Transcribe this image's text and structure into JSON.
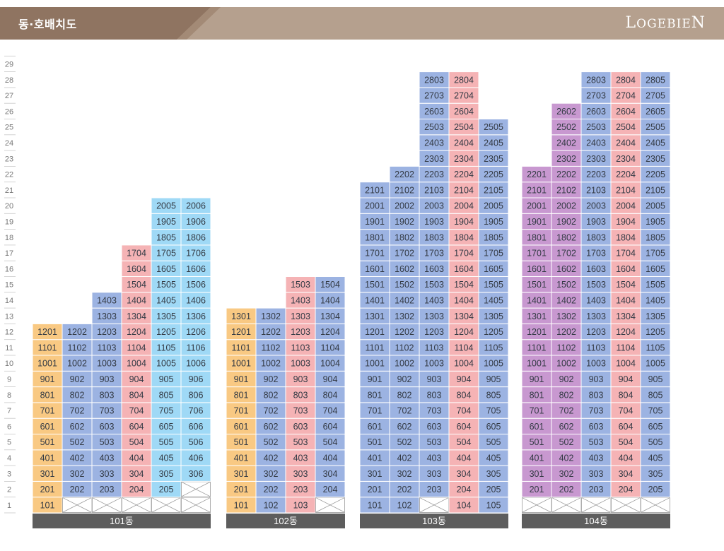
{
  "header": {
    "title": "동·호배치도",
    "brand": "LogebieN"
  },
  "colors": {
    "header_bg": "#b5a08e",
    "header_dark": "#8f7461",
    "yellow": "#f9c983",
    "blue": "#9cb3e2",
    "pink": "#f5b3b5",
    "lightblue": "#9fd9f6",
    "purple": "#c898d0",
    "empty": "#ffffff",
    "label_bg": "#5d5d5d"
  },
  "floors": [
    "1",
    "2",
    "3",
    "4",
    "5",
    "6",
    "7",
    "8",
    "9",
    "10",
    "11",
    "12",
    "13",
    "14",
    "15",
    "16",
    "17",
    "18",
    "19",
    "20",
    "21",
    "22",
    "23",
    "24",
    "25",
    "26",
    "27",
    "28",
    "29"
  ],
  "buildings": [
    {
      "label": "101동",
      "lines": [
        {
          "no": 1,
          "color": "yellow",
          "floors": [
            1,
            12
          ],
          "missing": []
        },
        {
          "no": 2,
          "color": "blue",
          "floors": [
            1,
            12
          ],
          "missing": [
            1
          ]
        },
        {
          "no": 3,
          "color": "blue",
          "floors": [
            1,
            14
          ],
          "missing": [
            1
          ]
        },
        {
          "no": 4,
          "color": "pink",
          "floors": [
            1,
            17
          ],
          "missing": [
            1
          ]
        },
        {
          "no": 5,
          "color": "lightblue",
          "floors": [
            1,
            20
          ],
          "missing": [
            1
          ]
        },
        {
          "no": 6,
          "color": "lightblue",
          "floors": [
            1,
            20
          ],
          "missing": [
            1,
            2
          ]
        }
      ]
    },
    {
      "label": "102동",
      "lines": [
        {
          "no": 1,
          "color": "yellow",
          "floors": [
            1,
            13
          ],
          "missing": []
        },
        {
          "no": 2,
          "color": "blue",
          "floors": [
            1,
            13
          ],
          "missing": []
        },
        {
          "no": 3,
          "color": "pink",
          "floors": [
            1,
            15
          ],
          "missing": []
        },
        {
          "no": 4,
          "color": "blue",
          "floors": [
            1,
            15
          ],
          "missing": [
            1
          ]
        }
      ]
    },
    {
      "label": "103동",
      "lines": [
        {
          "no": 1,
          "color": "blue",
          "floors": [
            1,
            21
          ],
          "missing": []
        },
        {
          "no": 2,
          "color": "blue",
          "floors": [
            1,
            22
          ],
          "missing": []
        },
        {
          "no": 3,
          "color": "blue",
          "floors": [
            1,
            28
          ],
          "missing": [
            1
          ]
        },
        {
          "no": 4,
          "color": "pink",
          "floors": [
            1,
            28
          ],
          "missing": []
        },
        {
          "no": 5,
          "color": "blue",
          "floors": [
            1,
            25
          ],
          "missing": []
        }
      ]
    },
    {
      "label": "104동",
      "lines": [
        {
          "no": 1,
          "color": "purple",
          "floors": [
            1,
            22
          ],
          "missing": [
            1
          ]
        },
        {
          "no": 2,
          "color": "purple",
          "floors": [
            1,
            26
          ],
          "missing": [
            1
          ]
        },
        {
          "no": 3,
          "color": "blue",
          "floors": [
            1,
            28
          ],
          "missing": [
            1
          ]
        },
        {
          "no": 4,
          "color": "pink",
          "floors": [
            1,
            28
          ],
          "missing": [
            1
          ]
        },
        {
          "no": 5,
          "color": "blue",
          "floors": [
            1,
            28
          ],
          "missing": [
            1
          ]
        }
      ]
    }
  ]
}
